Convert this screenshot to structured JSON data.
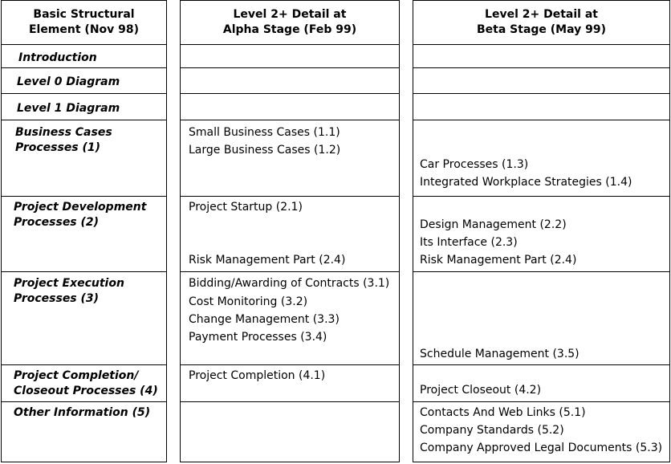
{
  "headers": {
    "col1": "Basic Structural\nElement (Nov 98)",
    "col2": "Level 2+ Detail at\nAlpha Stage (Feb 99)",
    "col3": "Level 2+ Detail at\nBeta Stage (May 99)"
  },
  "rows": [
    {
      "label": "Introduction",
      "alpha": [],
      "beta": []
    },
    {
      "label": "Level 0 Diagram",
      "alpha": [],
      "beta": []
    },
    {
      "label": "Level 1 Diagram",
      "alpha": [],
      "beta": []
    },
    {
      "label": "Business Cases\nProcesses (1)",
      "alpha": [
        "Small Business Cases (1.1)",
        "Large Business Cases (1.2)"
      ],
      "beta": [
        "Car Processes (1.3)",
        "Integrated Workplace Strategies (1.4)"
      ]
    },
    {
      "label": "Project Development\nProcesses (2)",
      "alpha": [
        "Project Startup (2.1)",
        "Risk Management Part (2.4)"
      ],
      "beta": [
        "Design Management (2.2)",
        "Its Interface (2.3)",
        "Risk Management Part (2.4)"
      ]
    },
    {
      "label": "Project Execution\nProcesses (3)",
      "alpha": [
        "Bidding/Awarding of Contracts (3.1)",
        "Cost Monitoring (3.2)",
        "Change Management (3.3)",
        "Payment Processes (3.4)"
      ],
      "beta": [
        "Schedule Management (3.5)"
      ]
    },
    {
      "label": "Project Completion/\nCloseout Processes (4)",
      "alpha": [
        "Project Completion (4.1)"
      ],
      "beta": [
        "Project Closeout (4.2)"
      ]
    },
    {
      "label": "Other Information (5)",
      "alpha": [],
      "beta": [
        "Contacts And Web Links (5.1)",
        "Company Standards (5.2)",
        "Company Approved Legal Documents (5.3)"
      ]
    }
  ]
}
